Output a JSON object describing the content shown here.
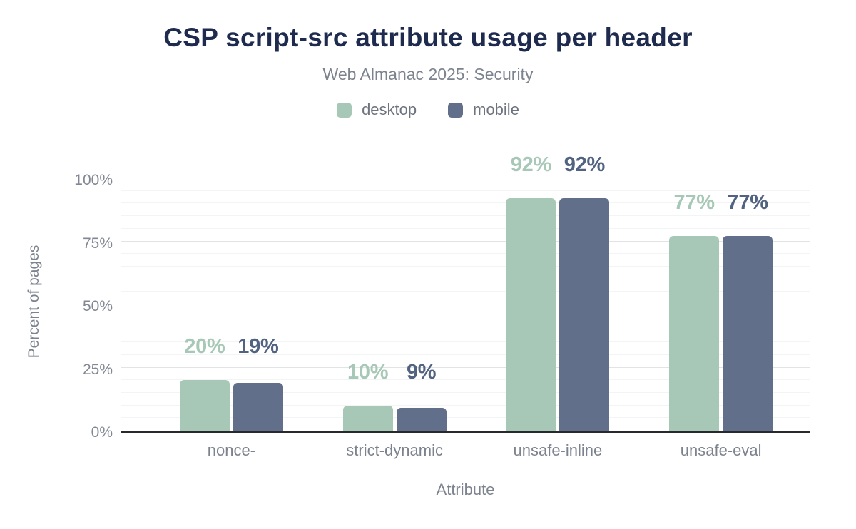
{
  "header": {
    "title": "CSP script-src attribute usage per header",
    "subtitle": "Web Almanac 2025: Security"
  },
  "colors": {
    "title_text": "#1e2b4e",
    "muted_text": "#7d838e",
    "desktop": "#a7c8b6",
    "mobile": "#616f8a",
    "mobile_label": "#516380",
    "axis_line": "#27292c",
    "gridline_major": "#e2e3e5",
    "gridline_minor": "#f3f4f5"
  },
  "chart_data": {
    "type": "bar",
    "title": "CSP script-src attribute usage per header",
    "subtitle": "Web Almanac 2025: Security",
    "categories": [
      "nonce-",
      "strict-dynamic",
      "unsafe-inline",
      "unsafe-eval"
    ],
    "series": [
      {
        "name": "desktop",
        "color": "#a7c8b6",
        "label_color": "#a7c8b6",
        "values": [
          20,
          10,
          92,
          77
        ],
        "labels": [
          "20%",
          "10%",
          "92%",
          "77%"
        ]
      },
      {
        "name": "mobile",
        "color": "#616f8a",
        "label_color": "#516380",
        "values": [
          19,
          9,
          92,
          77
        ],
        "labels": [
          "19%",
          "9%",
          "92%",
          "77%"
        ]
      }
    ],
    "xlabel": "Attribute",
    "ylabel": "Percent of pages",
    "ylim": [
      0,
      100
    ],
    "yticks": [
      0,
      25,
      50,
      75,
      100
    ],
    "ytick_labels": [
      "0%",
      "25%",
      "50%",
      "75%",
      "100%"
    ],
    "minor_grid_step": 5,
    "grid": true,
    "legend_position": "top"
  }
}
